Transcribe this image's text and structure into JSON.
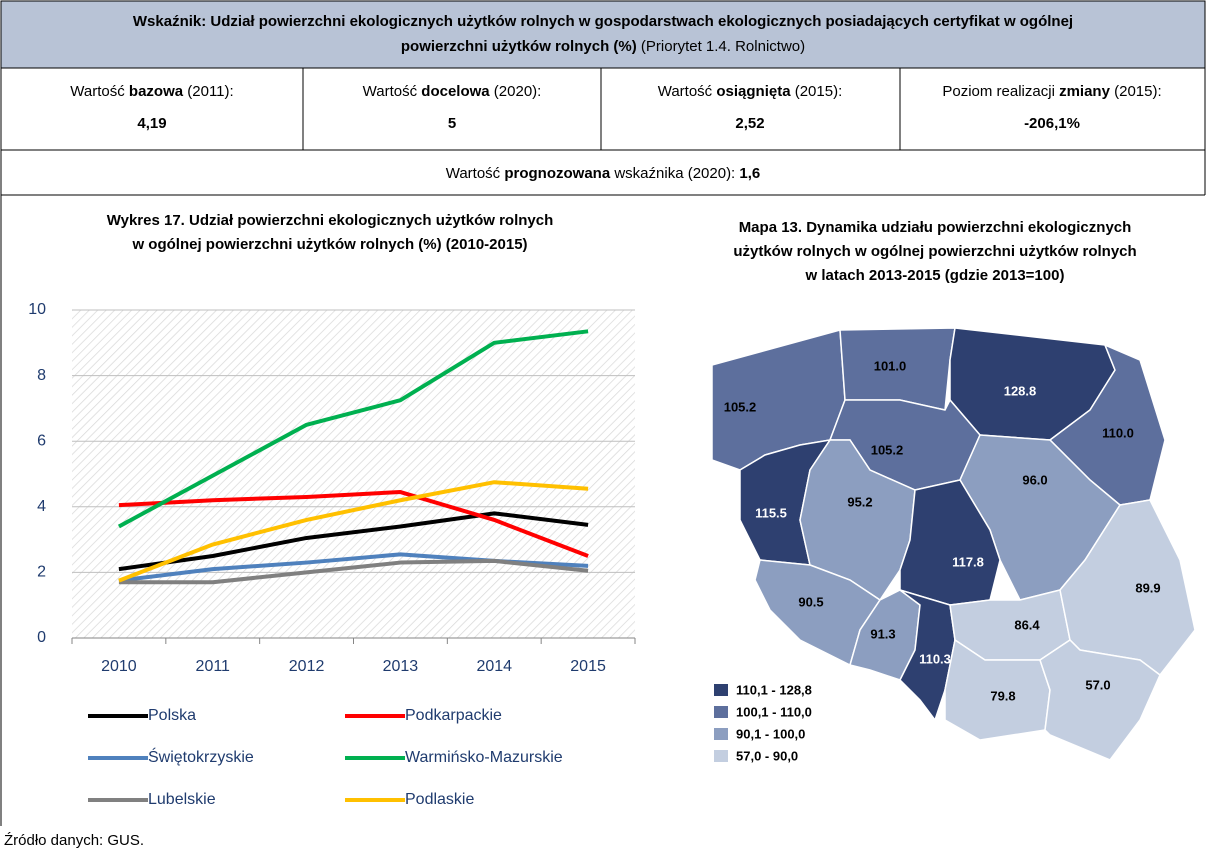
{
  "header": {
    "title_lines": [
      "Wskaźnik: Udział powierzchni ekologicznych użytków rolnych w gospodarstwach ekologicznych posiadających certyfikat w ogólnej",
      "powierzchni użytków rolnych (%)"
    ],
    "title_note": " (Priorytet 1.4. Rolnictwo)"
  },
  "cells": [
    {
      "label_pre": "Wartość ",
      "label_bold": "bazowa",
      "label_post": " (2011):",
      "value": "4,19"
    },
    {
      "label_pre": "Wartość ",
      "label_bold": "docelowa",
      "label_post": " (2020):",
      "value": "5"
    },
    {
      "label_pre": "Wartość ",
      "label_bold": "osiągnięta",
      "label_post": " (2015):",
      "value": "2,52"
    },
    {
      "label_pre": "Poziom realizacji ",
      "label_bold": "zmiany",
      "label_post": " (2015):",
      "value": "-206,1%"
    }
  ],
  "forecast": {
    "pre": "Wartość ",
    "bold": "prognozowana",
    "post": " wskaźnika (2020): ",
    "value": "1,6"
  },
  "chart_data": {
    "type": "line",
    "title_lines": [
      "Wykres 17. Udział powierzchni ekologicznych użytków rolnych",
      "w ogólnej powierzchni użytków rolnych (%) (2010-2015)"
    ],
    "categories": [
      "2010",
      "2011",
      "2012",
      "2013",
      "2014",
      "2015"
    ],
    "ylim": [
      0,
      10
    ],
    "yticks": [
      0,
      2,
      4,
      6,
      8,
      10
    ],
    "grid": true,
    "series": [
      {
        "name": "Polska",
        "color": "#000000",
        "values": [
          2.1,
          2.5,
          3.05,
          3.4,
          3.8,
          3.45
        ]
      },
      {
        "name": "Podkarpackie",
        "color": "#ff0000",
        "values": [
          4.05,
          4.2,
          4.3,
          4.45,
          3.6,
          2.5
        ]
      },
      {
        "name": "Świętokrzyskie",
        "color": "#4f81bd",
        "values": [
          1.75,
          2.1,
          2.3,
          2.55,
          2.35,
          2.2
        ]
      },
      {
        "name": "Warmińsko-Mazurskie",
        "color": "#00b050",
        "values": [
          3.4,
          4.95,
          6.5,
          7.25,
          9.0,
          9.35
        ]
      },
      {
        "name": "Lubelskie",
        "color": "#808080",
        "values": [
          1.7,
          1.7,
          2.0,
          2.3,
          2.35,
          2.05
        ]
      },
      {
        "name": "Podlaskie",
        "color": "#ffc000",
        "values": [
          1.75,
          2.85,
          3.6,
          4.2,
          4.75,
          4.55
        ]
      }
    ]
  },
  "map": {
    "title_lines": [
      "Mapa 13. Dynamika udziału powierzchni ekologicznych",
      "użytków rolnych w ogólnej powierzchni użytków rolnych",
      "w latach 2013-2015 (gdzie 2013=100)"
    ],
    "legend": [
      {
        "label": "110,1 - 128,8",
        "color": "#2e4070"
      },
      {
        "label": "100,1 - 110,0",
        "color": "#5d6f9d"
      },
      {
        "label": "90,1 - 100,0",
        "color": "#8c9ec0"
      },
      {
        "label": "57,0 - 90,0",
        "color": "#c3cee0"
      }
    ],
    "regions": [
      {
        "label": "105.2",
        "color": "#5d6f9d"
      },
      {
        "label": "101.0",
        "color": "#5d6f9d"
      },
      {
        "label": "128.8",
        "color": "#2e4070"
      },
      {
        "label": "110.0",
        "color": "#5d6f9d"
      },
      {
        "label": "105.2",
        "color": "#5d6f9d"
      },
      {
        "label": "115.5",
        "color": "#2e4070"
      },
      {
        "label": "95.2",
        "color": "#8c9ec0"
      },
      {
        "label": "96.0",
        "color": "#8c9ec0"
      },
      {
        "label": "117.8",
        "color": "#2e4070"
      },
      {
        "label": "90.5",
        "color": "#8c9ec0"
      },
      {
        "label": "91.3",
        "color": "#8c9ec0"
      },
      {
        "label": "110.3",
        "color": "#2e4070"
      },
      {
        "label": "86.4",
        "color": "#c3cee0"
      },
      {
        "label": "89.9",
        "color": "#c3cee0"
      },
      {
        "label": "79.8",
        "color": "#c3cee0"
      },
      {
        "label": "57.0",
        "color": "#c3cee0"
      }
    ]
  },
  "source": "Źródło danych: GUS."
}
